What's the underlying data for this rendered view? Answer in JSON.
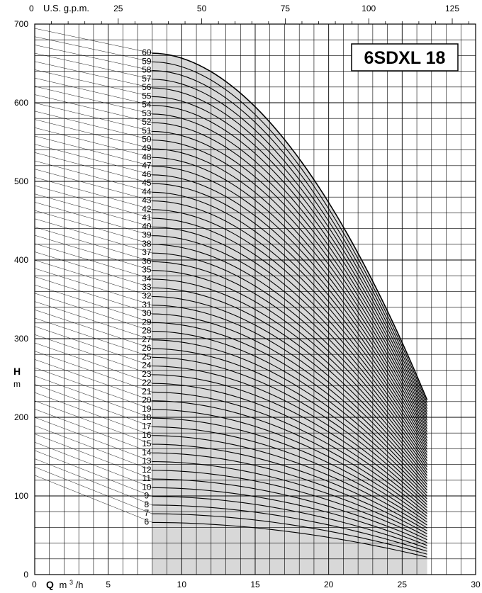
{
  "chart_data": {
    "type": "line",
    "title": "6SDXL 18",
    "ylabel_h": "H",
    "ylabel_m": "m",
    "xlabel_q": "Q",
    "xlabel_unit": "m",
    "xlabel_unit_sup": "3",
    "xlabel_unit_tail": "/h",
    "top_axis_label": "U.S. g.p.m.",
    "y_ticks": [
      "0",
      "100",
      "200",
      "300",
      "400",
      "500",
      "600",
      "700"
    ],
    "x_ticks": [
      "0",
      "5",
      "10",
      "15",
      "20",
      "25",
      "30"
    ],
    "top_ticks": [
      "0",
      "25",
      "50",
      "75",
      "100",
      "125"
    ],
    "xlim": [
      0,
      30
    ],
    "ylim": [
      0,
      700
    ],
    "top_lim_gpm": [
      0,
      132
    ],
    "operating_range_q": [
      8,
      26.7
    ],
    "curve_q_start": 8,
    "curve_q_end": 26.7,
    "stage_min": 6,
    "stage_max": 60,
    "head_per_stage_at_q8": 11.05,
    "head_per_stage_at_q26_7": 3.7,
    "grid": "on"
  },
  "colors": {
    "shade": "#d8d8d8",
    "grid": "#000000",
    "curve": "#000000"
  }
}
